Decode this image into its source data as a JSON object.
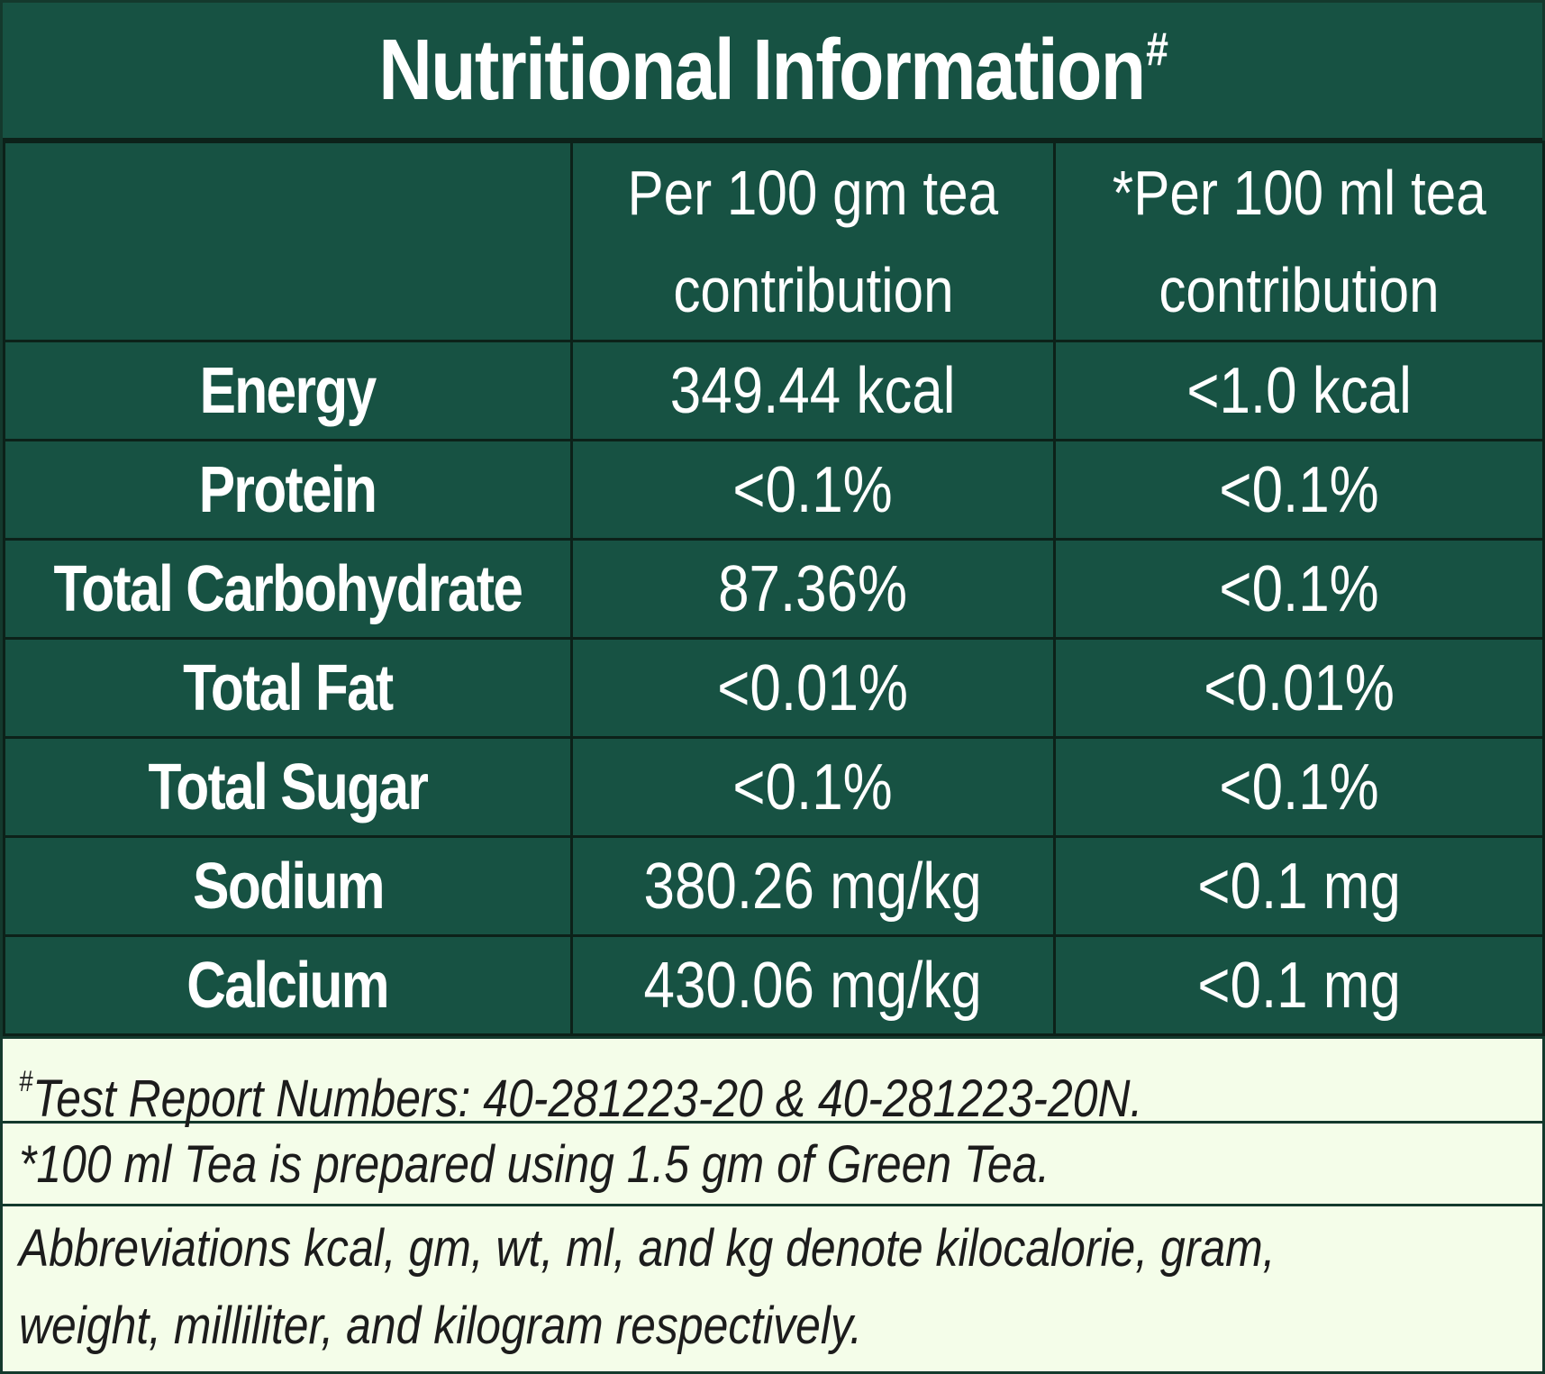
{
  "title": {
    "text": "Nutritional Information",
    "marker": "#"
  },
  "table": {
    "column_headers": [
      "",
      [
        "Per 100 gm tea",
        "contribution"
      ],
      [
        "*Per 100 ml tea",
        "contribution"
      ]
    ],
    "rows": [
      {
        "nutrient": "Energy",
        "per_100_gm": "349.44 kcal",
        "per_100_ml": "<1.0 kcal"
      },
      {
        "nutrient": "Protein",
        "per_100_gm": "<0.1%",
        "per_100_ml": "<0.1%"
      },
      {
        "nutrient": "Total Carbohydrate",
        "per_100_gm": "87.36%",
        "per_100_ml": "<0.1%"
      },
      {
        "nutrient": "Total Fat",
        "per_100_gm": "<0.01%",
        "per_100_ml": "<0.01%"
      },
      {
        "nutrient": "Total Sugar",
        "per_100_gm": "<0.1%",
        "per_100_ml": "<0.1%"
      },
      {
        "nutrient": "Sodium",
        "per_100_gm": "380.26 mg/kg",
        "per_100_ml": "<0.1 mg"
      },
      {
        "nutrient": "Calcium",
        "per_100_gm": "430.06 mg/kg",
        "per_100_ml": "<0.1 mg"
      }
    ]
  },
  "notes": {
    "test_report": {
      "marker": "#",
      "text": "Test Report Numbers: 40-281223-20 & 40-281223-20N."
    },
    "preparation": "*100 ml Tea is prepared using 1.5 gm of Green Tea.",
    "abbreviations": [
      "Abbreviations kcal, gm, wt, ml, and kg denote kilocalorie, gram,",
      "weight, milliliter, and kilogram respectively."
    ]
  },
  "colors": {
    "header_green": "#175243",
    "grid_dark": "#0c2119",
    "note_background": "#f4fde9",
    "text_light": "#ffffff",
    "text_dark": "#1c1c1c"
  }
}
